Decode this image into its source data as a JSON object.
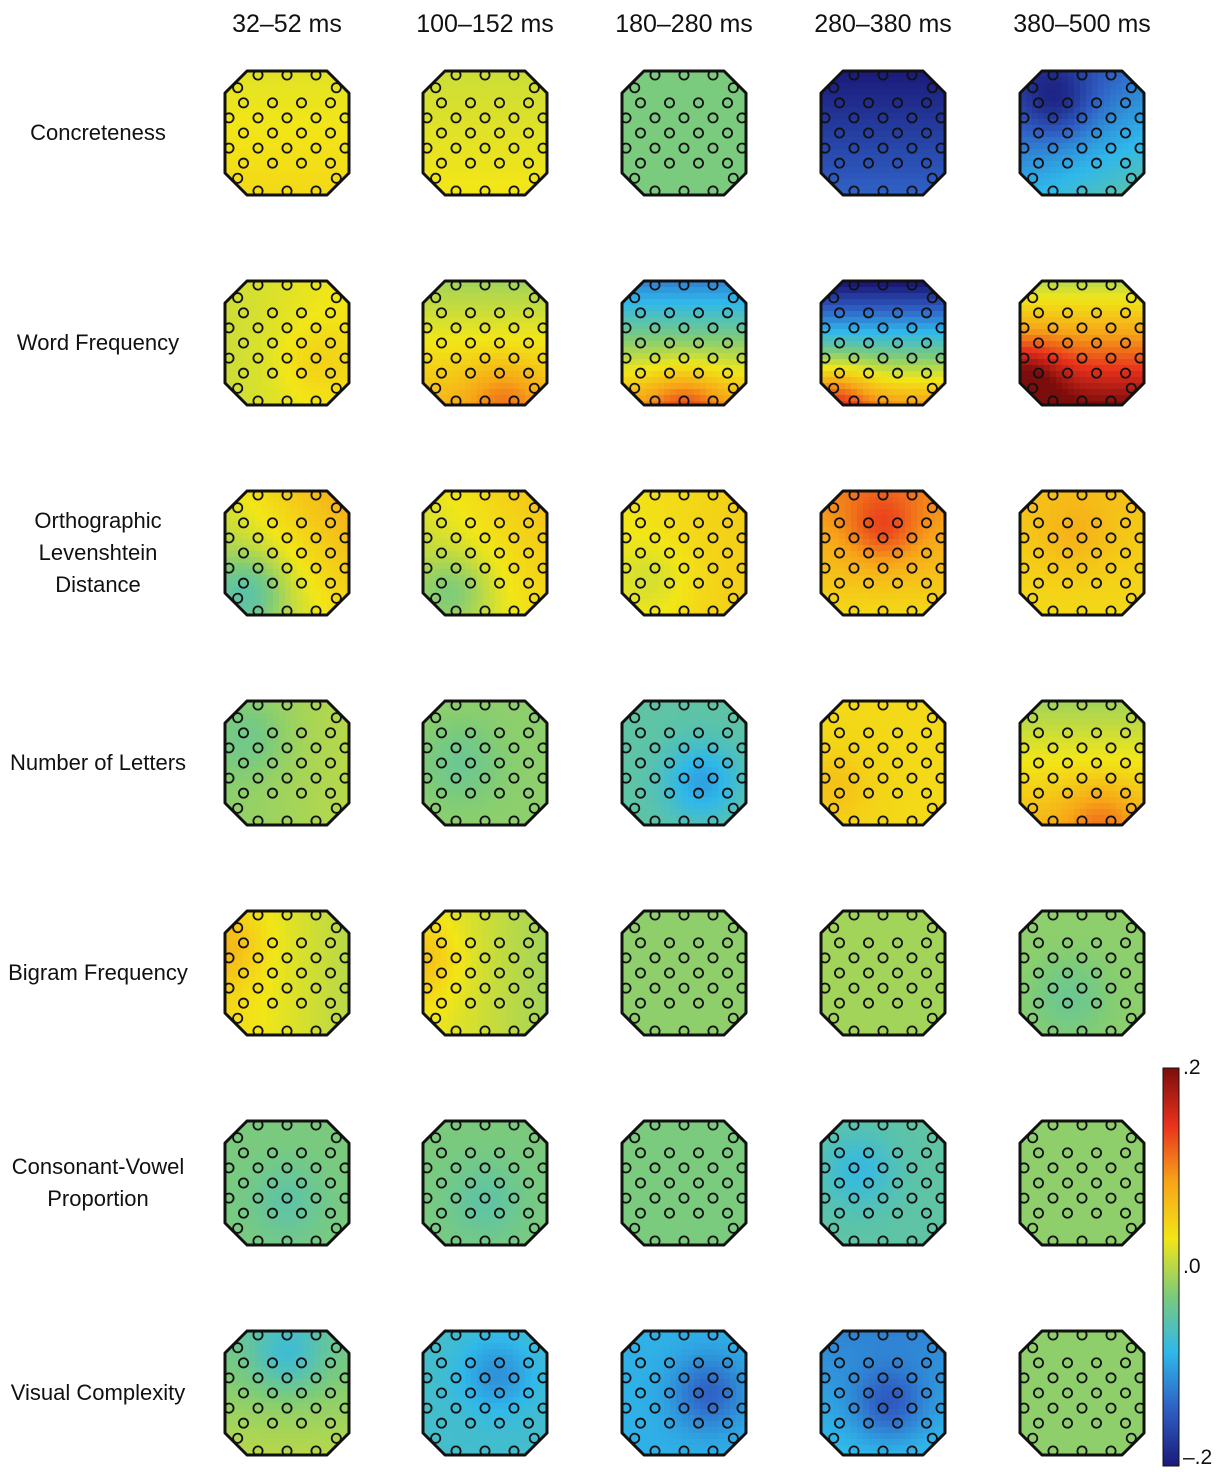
{
  "chart_data": {
    "type": "heatmap",
    "title": "",
    "columns": [
      "32–52 ms",
      "100–152 ms",
      "180–280 ms",
      "280–380 ms",
      "380–500 ms"
    ],
    "rows": [
      {
        "label": [
          "Concreteness"
        ],
        "maps": [
          {
            "mean": 0.03,
            "gx": 0.0,
            "gy": 0.01,
            "blob": {
              "x": 0.0,
              "y": 0.0,
              "v": 0.0
            }
          },
          {
            "mean": 0.02,
            "gx": 0.0,
            "gy": 0.01,
            "blob": {
              "x": 0.0,
              "y": 0.0,
              "v": 0.0
            }
          },
          {
            "mean": -0.03,
            "gx": 0.0,
            "gy": 0.0,
            "blob": {
              "x": 0.0,
              "y": 0.0,
              "v": 0.0
            }
          },
          {
            "mean": -0.17,
            "gx": 0.0,
            "gy": 0.03,
            "blob": {
              "x": 0.0,
              "y": 0.0,
              "v": 0.0
            }
          },
          {
            "mean": -0.11,
            "gx": 0.02,
            "gy": 0.04,
            "blob": {
              "x": -0.4,
              "y": -0.5,
              "v": -0.05
            }
          }
        ]
      },
      {
        "label": [
          "Word Frequency"
        ],
        "maps": [
          {
            "mean": 0.02,
            "gx": 0.01,
            "gy": 0.0,
            "blob": {
              "x": 0.5,
              "y": 0.3,
              "v": 0.02
            }
          },
          {
            "mean": 0.03,
            "gx": 0.0,
            "gy": 0.04,
            "blob": {
              "x": 0.3,
              "y": 0.9,
              "v": 0.04
            }
          },
          {
            "mean": -0.02,
            "gx": 0.0,
            "gy": 0.1,
            "blob": {
              "x": 0.0,
              "y": 1.0,
              "v": 0.05
            }
          },
          {
            "mean": -0.06,
            "gx": 0.0,
            "gy": 0.15,
            "blob": {
              "x": -0.8,
              "y": 0.9,
              "v": 0.06
            }
          },
          {
            "mean": 0.1,
            "gx": 0.0,
            "gy": 0.1,
            "blob": {
              "x": -0.9,
              "y": 0.6,
              "v": 0.06
            }
          }
        ]
      },
      {
        "label": [
          "Orthographic",
          "Levenshtein",
          "Distance"
        ],
        "maps": [
          {
            "mean": 0.03,
            "gx": 0.03,
            "gy": -0.02,
            "blob": {
              "x": -0.6,
              "y": 0.6,
              "v": -0.05
            }
          },
          {
            "mean": 0.03,
            "gx": 0.02,
            "gy": -0.01,
            "blob": {
              "x": -0.5,
              "y": 0.6,
              "v": -0.04
            }
          },
          {
            "mean": 0.04,
            "gx": 0.01,
            "gy": 0.0,
            "blob": {
              "x": -0.5,
              "y": 0.4,
              "v": -0.02
            }
          },
          {
            "mean": 0.07,
            "gx": 0.0,
            "gy": -0.03,
            "blob": {
              "x": 0.0,
              "y": -0.4,
              "v": 0.05
            }
          },
          {
            "mean": 0.05,
            "gx": 0.0,
            "gy": -0.01,
            "blob": {
              "x": -0.1,
              "y": -0.3,
              "v": 0.02
            }
          }
        ]
      },
      {
        "label": [
          "Number of Letters"
        ],
        "maps": [
          {
            "mean": -0.01,
            "gx": 0.01,
            "gy": 0.0,
            "blob": {
              "x": -0.6,
              "y": -0.4,
              "v": -0.02
            }
          },
          {
            "mean": -0.02,
            "gx": 0.0,
            "gy": 0.0,
            "blob": {
              "x": -0.4,
              "y": 0.0,
              "v": -0.02
            }
          },
          {
            "mean": -0.05,
            "gx": 0.0,
            "gy": 0.0,
            "blob": {
              "x": 0.3,
              "y": 0.3,
              "v": -0.05
            }
          },
          {
            "mean": 0.04,
            "gx": 0.0,
            "gy": 0.0,
            "blob": {
              "x": -0.8,
              "y": 0.4,
              "v": 0.02
            }
          },
          {
            "mean": 0.03,
            "gx": 0.0,
            "gy": 0.04,
            "blob": {
              "x": 0.3,
              "y": 0.9,
              "v": 0.04
            }
          }
        ]
      },
      {
        "label": [
          "Bigram Frequency"
        ],
        "maps": [
          {
            "mean": 0.02,
            "gx": -0.02,
            "gy": 0.0,
            "blob": {
              "x": -1.0,
              "y": -0.4,
              "v": 0.03
            }
          },
          {
            "mean": 0.01,
            "gx": -0.02,
            "gy": 0.0,
            "blob": {
              "x": -1.0,
              "y": -0.2,
              "v": 0.03
            }
          },
          {
            "mean": -0.02,
            "gx": 0.0,
            "gy": 0.0,
            "blob": {
              "x": 0.0,
              "y": 0.0,
              "v": 0.0
            }
          },
          {
            "mean": -0.01,
            "gx": 0.0,
            "gy": 0.0,
            "blob": {
              "x": 0.0,
              "y": 0.0,
              "v": 0.0
            }
          },
          {
            "mean": -0.02,
            "gx": 0.0,
            "gy": 0.0,
            "blob": {
              "x": -0.2,
              "y": 0.4,
              "v": -0.02
            }
          }
        ]
      },
      {
        "label": [
          "Consonant-Vowel",
          "Proportion"
        ],
        "maps": [
          {
            "mean": -0.03,
            "gx": 0.0,
            "gy": 0.0,
            "blob": {
              "x": 0.0,
              "y": 0.3,
              "v": -0.02
            }
          },
          {
            "mean": -0.03,
            "gx": 0.0,
            "gy": 0.0,
            "blob": {
              "x": 0.0,
              "y": 0.3,
              "v": -0.02
            }
          },
          {
            "mean": -0.03,
            "gx": 0.0,
            "gy": 0.0,
            "blob": {
              "x": 0.0,
              "y": 0.0,
              "v": 0.0
            }
          },
          {
            "mean": -0.05,
            "gx": 0.0,
            "gy": 0.0,
            "blob": {
              "x": -0.4,
              "y": -0.2,
              "v": -0.03
            }
          },
          {
            "mean": -0.02,
            "gx": 0.0,
            "gy": 0.0,
            "blob": {
              "x": 0.0,
              "y": 0.0,
              "v": 0.0
            }
          }
        ]
      },
      {
        "label": [
          "Visual Complexity"
        ],
        "maps": [
          {
            "mean": -0.02,
            "gx": 0.0,
            "gy": 0.02,
            "blob": {
              "x": 0.0,
              "y": -0.6,
              "v": -0.04
            }
          },
          {
            "mean": -0.07,
            "gx": 0.0,
            "gy": 0.0,
            "blob": {
              "x": 0.2,
              "y": -0.3,
              "v": -0.04
            }
          },
          {
            "mean": -0.09,
            "gx": 0.0,
            "gy": 0.0,
            "blob": {
              "x": 0.4,
              "y": 0.0,
              "v": -0.05
            }
          },
          {
            "mean": -0.1,
            "gx": 0.0,
            "gy": 0.02,
            "blob": {
              "x": 0.1,
              "y": 0.2,
              "v": -0.05
            }
          },
          {
            "mean": -0.02,
            "gx": 0.0,
            "gy": 0.0,
            "blob": {
              "x": 0.0,
              "y": 0.0,
              "v": 0.0
            }
          }
        ]
      }
    ],
    "colorbar": {
      "range": [
        -0.2,
        0.2
      ],
      "ticks": [
        ".2",
        ".0",
        "–.2"
      ],
      "colormap": [
        "#1a1a7a",
        "#2f5fc4",
        "#2fb8ea",
        "#7ccb7a",
        "#f2e617",
        "#f7a418",
        "#e8311d",
        "#7c0d0d"
      ]
    },
    "electrode_grid": "octagonal scalp layout, 9 rows of electrodes"
  }
}
